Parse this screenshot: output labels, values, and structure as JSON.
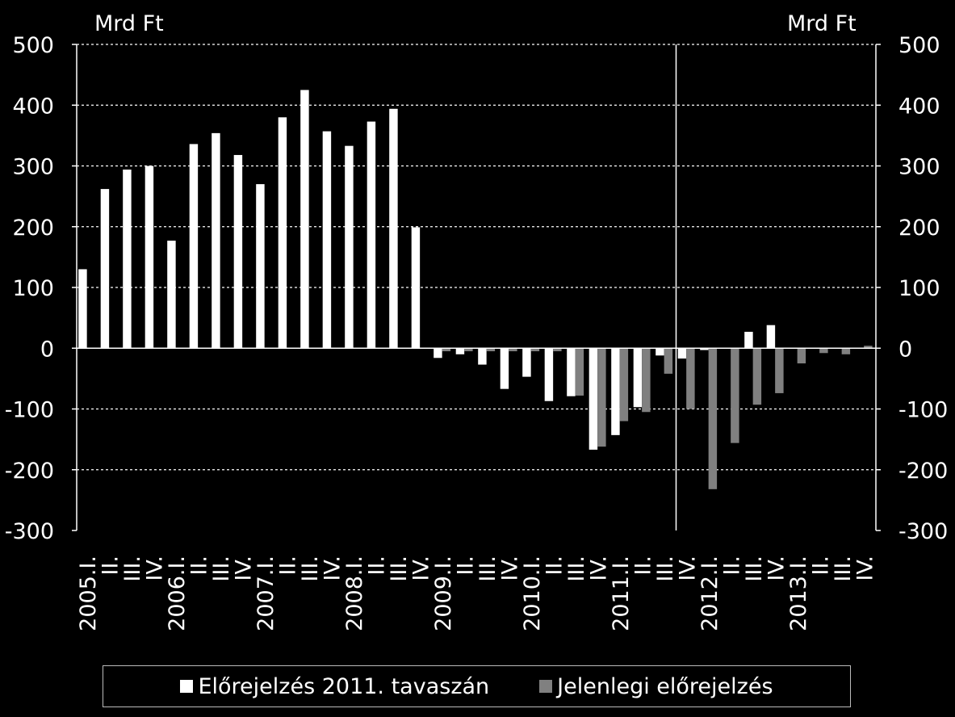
{
  "chart_data": {
    "type": "bar",
    "y_unit_left": "Mrd Ft",
    "y_unit_right": "Mrd Ft",
    "ylim": [
      -300,
      500
    ],
    "yticks": [
      500,
      400,
      300,
      200,
      100,
      0,
      -100,
      -200,
      -300
    ],
    "grid": true,
    "categories": [
      "2005.I.",
      "II.",
      "III.",
      "IV.",
      "2006.I.",
      "II.",
      "III.",
      "IV.",
      "2007.I.",
      "II.",
      "III.",
      "IV.",
      "2008.I.",
      "II.",
      "III.",
      "IV.",
      "2009.I.",
      "II.",
      "III.",
      "IV.",
      "2010.I.",
      "II.",
      "III.",
      "IV.",
      "2011.I.",
      "II.",
      "III.",
      "IV.",
      "2012.I.",
      "II.",
      "III.",
      "IV.",
      "2013.I.",
      "II.",
      "III.",
      "IV."
    ],
    "year_labels": [
      "2005.",
      "2006.",
      "2007.",
      "2008.",
      "2009.",
      "2010.",
      "2011.",
      "2012.",
      "2013."
    ],
    "quarter_labels": [
      "I.",
      "II.",
      "III.",
      "IV."
    ],
    "forecast_divider_after_index": 26,
    "series": [
      {
        "name": "Előrejelzés 2011. tavaszán",
        "color": "#ffffff",
        "values": [
          130,
          262,
          294,
          300,
          177,
          336,
          354,
          318,
          270,
          380,
          425,
          357,
          333,
          373,
          394,
          199,
          -16,
          -10,
          -27,
          -67,
          -47,
          -87,
          -79,
          -167,
          -143,
          -97,
          -12,
          -17,
          -3,
          0,
          27,
          38,
          0,
          0,
          0,
          0
        ]
      },
      {
        "name": "Jelenlegi előrejelzés",
        "color": "#808080",
        "values": [
          null,
          null,
          null,
          null,
          null,
          null,
          null,
          null,
          null,
          null,
          null,
          null,
          null,
          null,
          null,
          null,
          -5,
          -5,
          -5,
          -5,
          -5,
          -5,
          -78,
          -162,
          -120,
          -105,
          -42,
          -100,
          -232,
          -156,
          -93,
          -74,
          -25,
          -8,
          -10,
          4
        ]
      }
    ]
  },
  "legend": {
    "series1_label": "Előrejelzés 2011. tavaszán",
    "series2_label": "Jelenlegi előrejelzés"
  }
}
